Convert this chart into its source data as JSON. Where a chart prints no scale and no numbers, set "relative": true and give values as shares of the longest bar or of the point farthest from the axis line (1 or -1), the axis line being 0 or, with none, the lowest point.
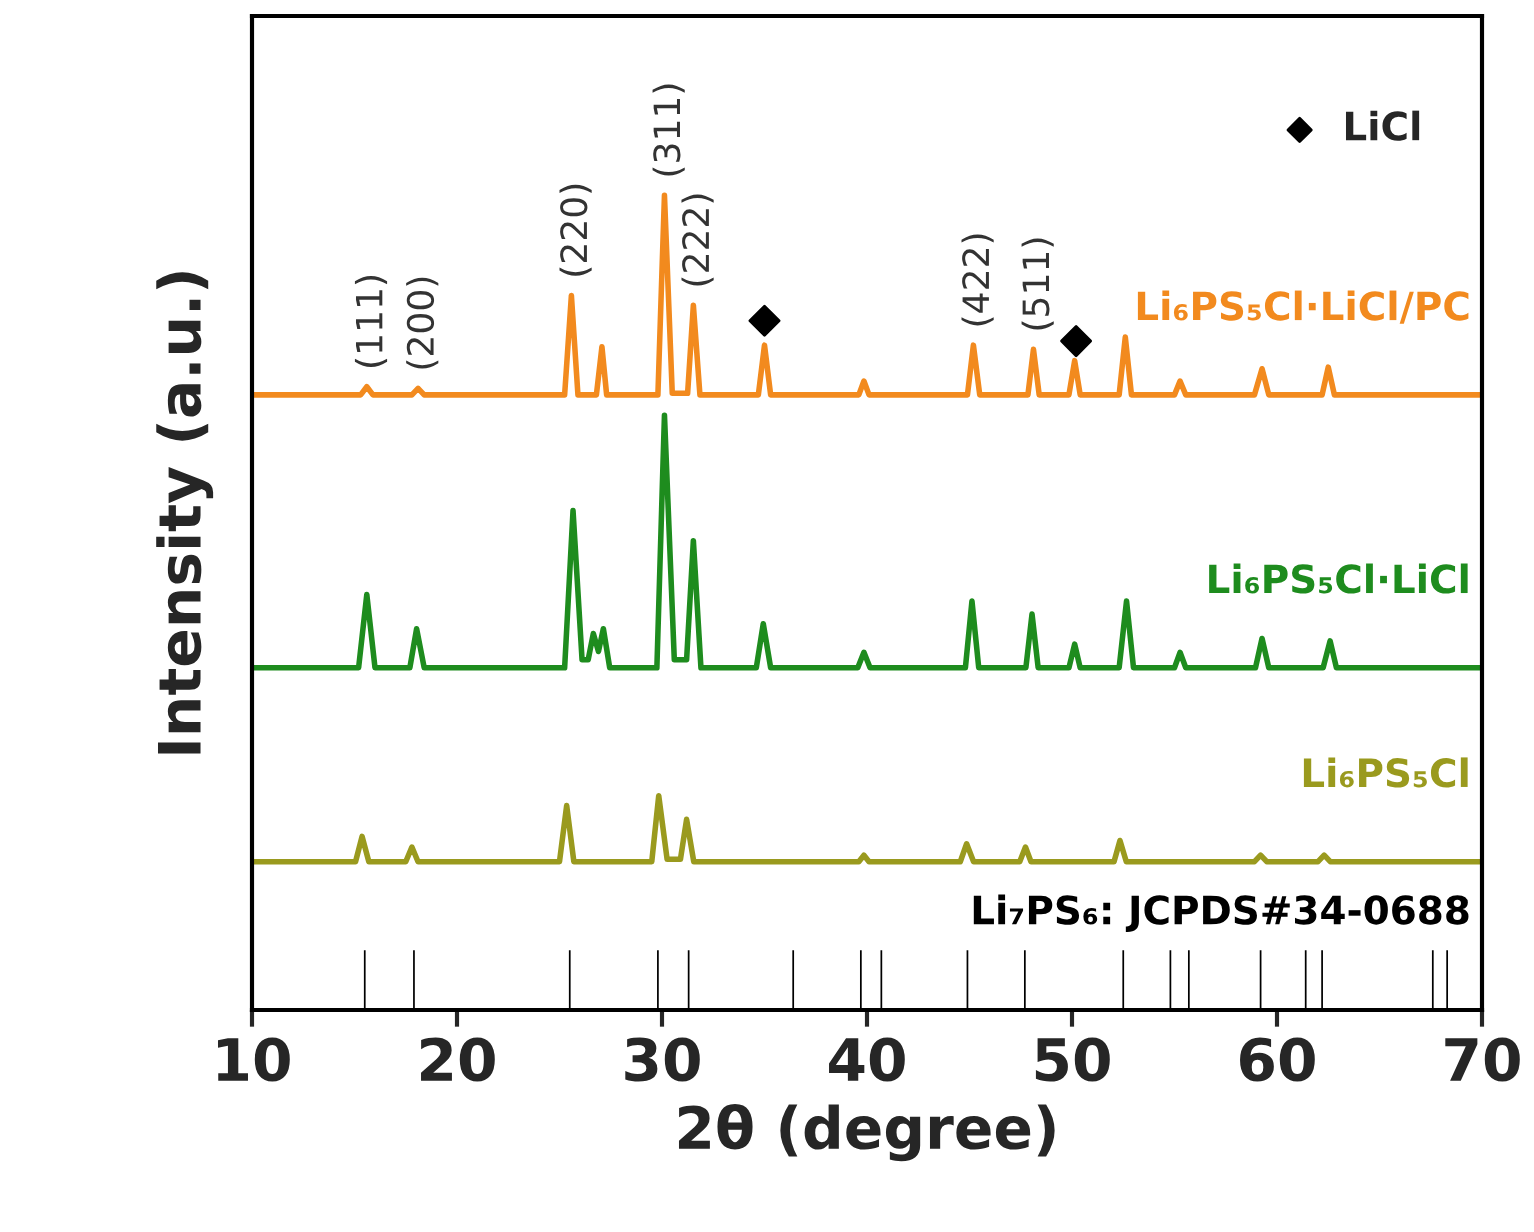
{
  "chart_data": {
    "type": "line",
    "relative": true,
    "xlabel": "2θ (degree)",
    "ylabel": "Intensity (a.u.)",
    "xlim": [
      10,
      70
    ],
    "xticks": [
      10,
      20,
      30,
      40,
      50,
      60,
      70
    ],
    "tick_labels": "x",
    "grid": false,
    "legend": "top right",
    "series": [
      {
        "name": "Li₆PS₅Cl·LiCl/PC",
        "color": "#f28a1e",
        "x": [
          10,
          15.3,
          15.6,
          15.9,
          17.8,
          18.1,
          18.4,
          25.25,
          25.58,
          25.9,
          26.8,
          27.07,
          27.3,
          29.8,
          30.12,
          30.5,
          31.25,
          31.53,
          31.85,
          34.7,
          35.0,
          35.3,
          39.6,
          39.85,
          40.1,
          44.9,
          45.19,
          45.5,
          47.85,
          48.12,
          48.4,
          49.85,
          50.13,
          50.4,
          52.3,
          52.6,
          52.9,
          55.0,
          55.27,
          55.55,
          58.9,
          59.27,
          59.6,
          62.2,
          62.5,
          62.8,
          70
        ],
        "values": [
          0.755,
          0.755,
          0.765,
          0.755,
          0.755,
          0.763,
          0.755,
          0.755,
          0.877,
          0.755,
          0.755,
          0.814,
          0.755,
          0.755,
          1.0,
          0.757,
          0.757,
          0.865,
          0.755,
          0.755,
          0.816,
          0.755,
          0.755,
          0.772,
          0.755,
          0.755,
          0.816,
          0.755,
          0.755,
          0.811,
          0.755,
          0.755,
          0.797,
          0.755,
          0.755,
          0.826,
          0.755,
          0.755,
          0.772,
          0.755,
          0.755,
          0.787,
          0.755,
          0.755,
          0.789,
          0.755,
          0.755
        ]
      },
      {
        "name": "Li₆PS₅Cl·LiCl",
        "color": "#1e8c1e",
        "x": [
          10,
          15.2,
          15.6,
          16.0,
          17.7,
          18.03,
          18.4,
          25.25,
          25.66,
          26.1,
          26.4,
          26.65,
          26.9,
          27.14,
          27.45,
          29.75,
          30.12,
          30.6,
          31.2,
          31.53,
          31.9,
          34.6,
          34.94,
          35.3,
          39.55,
          39.85,
          40.15,
          44.8,
          45.12,
          45.45,
          47.75,
          48.05,
          48.35,
          49.85,
          50.13,
          50.4,
          52.3,
          52.66,
          53.0,
          55.0,
          55.27,
          55.55,
          58.95,
          59.27,
          59.6,
          62.25,
          62.59,
          62.9,
          70
        ],
        "values": [
          0.42,
          0.42,
          0.51,
          0.42,
          0.42,
          0.468,
          0.42,
          0.42,
          0.613,
          0.43,
          0.43,
          0.462,
          0.44,
          0.468,
          0.42,
          0.42,
          0.73,
          0.43,
          0.43,
          0.576,
          0.42,
          0.42,
          0.474,
          0.42,
          0.42,
          0.439,
          0.42,
          0.42,
          0.502,
          0.42,
          0.42,
          0.486,
          0.42,
          0.42,
          0.449,
          0.42,
          0.42,
          0.502,
          0.42,
          0.42,
          0.439,
          0.42,
          0.42,
          0.456,
          0.42,
          0.42,
          0.453,
          0.42,
          0.42
        ]
      },
      {
        "name": "Li₆PS₅Cl",
        "color": "#9a9a1e",
        "x": [
          10,
          15.05,
          15.37,
          15.7,
          17.5,
          17.8,
          18.1,
          25.0,
          25.35,
          25.7,
          29.5,
          29.84,
          30.25,
          30.9,
          31.2,
          31.55,
          39.6,
          39.85,
          40.1,
          44.55,
          44.86,
          45.2,
          47.45,
          47.73,
          48.0,
          52.05,
          52.34,
          52.65,
          58.9,
          59.2,
          59.5,
          62.0,
          62.3,
          62.6,
          70
        ],
        "values": [
          0.182,
          0.182,
          0.213,
          0.182,
          0.182,
          0.2,
          0.182,
          0.182,
          0.251,
          0.182,
          0.182,
          0.263,
          0.185,
          0.185,
          0.234,
          0.182,
          0.182,
          0.19,
          0.182,
          0.182,
          0.204,
          0.182,
          0.182,
          0.2,
          0.182,
          0.182,
          0.208,
          0.182,
          0.182,
          0.19,
          0.182,
          0.182,
          0.19,
          0.182,
          0.182
        ]
      },
      {
        "name": "Li₇PS₆: JCPDS#34-0688",
        "type": "bar",
        "color": "#000000",
        "x": [
          15.5,
          17.9,
          25.5,
          29.8,
          31.3,
          36.4,
          39.7,
          40.7,
          44.9,
          47.7,
          52.5,
          54.8,
          55.7,
          59.2,
          61.4,
          62.2,
          67.6,
          68.3
        ],
        "values": [
          0.075,
          0.075,
          0.075,
          0.075,
          0.075,
          0.075,
          0.075,
          0.075,
          0.075,
          0.075,
          0.075,
          0.075,
          0.075,
          0.075,
          0.075,
          0.075,
          0.075,
          0.075
        ]
      },
      {
        "name": "LiCl",
        "type": "scatter",
        "marker": "diamond",
        "color": "#000000",
        "x": [
          35.0,
          50.2
        ],
        "values": [
          0.846,
          0.821
        ]
      }
    ],
    "annotations": [
      {
        "text": "(111)",
        "x": 15.6,
        "y": 0.765
      },
      {
        "text": "(200)",
        "x": 18.1,
        "y": 0.763
      },
      {
        "text": "(220)",
        "x": 25.58,
        "y": 0.877
      },
      {
        "text": "(311)",
        "x": 30.12,
        "y": 1.0
      },
      {
        "text": "(222)",
        "x": 31.53,
        "y": 0.865
      },
      {
        "text": "(422)",
        "x": 45.19,
        "y": 0.816
      },
      {
        "text": "(511)",
        "x": 48.12,
        "y": 0.811
      }
    ]
  }
}
